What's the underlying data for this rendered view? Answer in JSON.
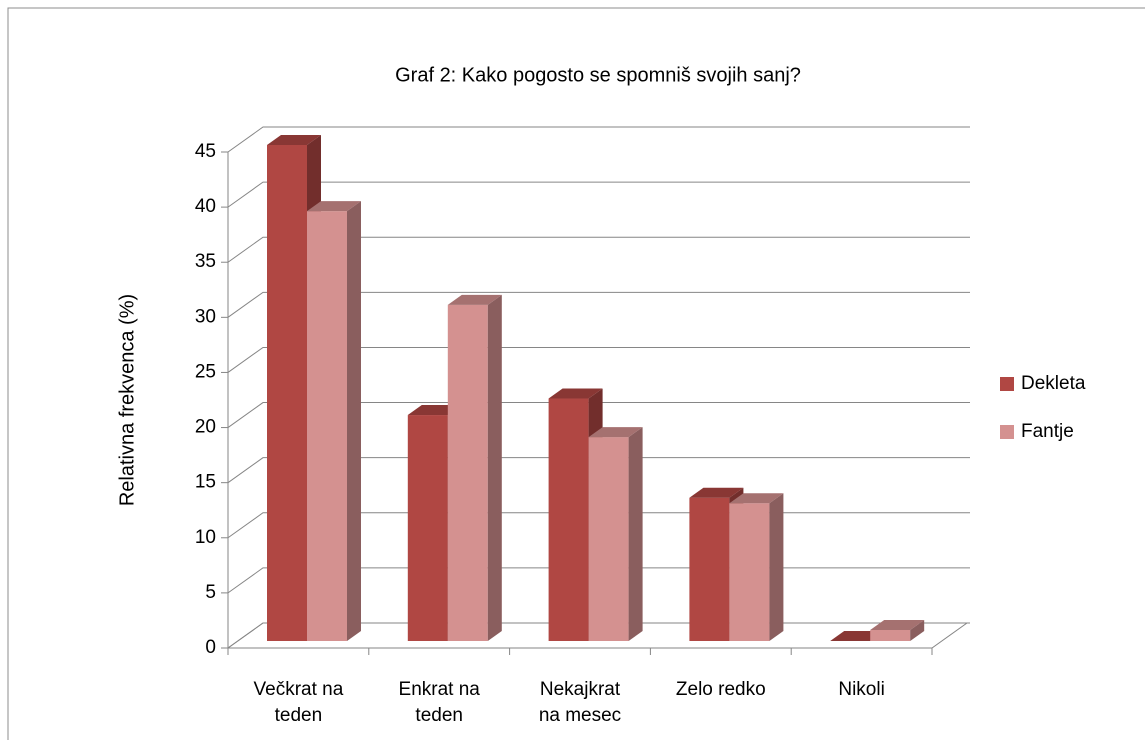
{
  "chart_data": {
    "type": "bar3d",
    "title": "Graf 2: Kako pogosto se spomniš svojih sanj?",
    "y_label": "Relativna frekvenca (%)",
    "categories": [
      [
        "Večkrat na",
        "teden"
      ],
      [
        "Enkrat na",
        "teden"
      ],
      [
        "Nekajkrat",
        "na mesec"
      ],
      [
        "Zelo redko"
      ],
      [
        "Nikoli"
      ]
    ],
    "series": [
      {
        "name": "Dekleta",
        "color": "#b04743",
        "values": [
          45,
          20.5,
          22,
          13,
          0
        ]
      },
      {
        "name": "Fantje",
        "color": "#d49190",
        "values": [
          39,
          30.5,
          18.5,
          12.5,
          1
        ]
      }
    ],
    "ylim": [
      0,
      45
    ],
    "yticks": [
      0,
      5,
      10,
      15,
      20,
      25,
      30,
      35,
      40,
      45
    ],
    "grid": true,
    "legend": "right"
  }
}
